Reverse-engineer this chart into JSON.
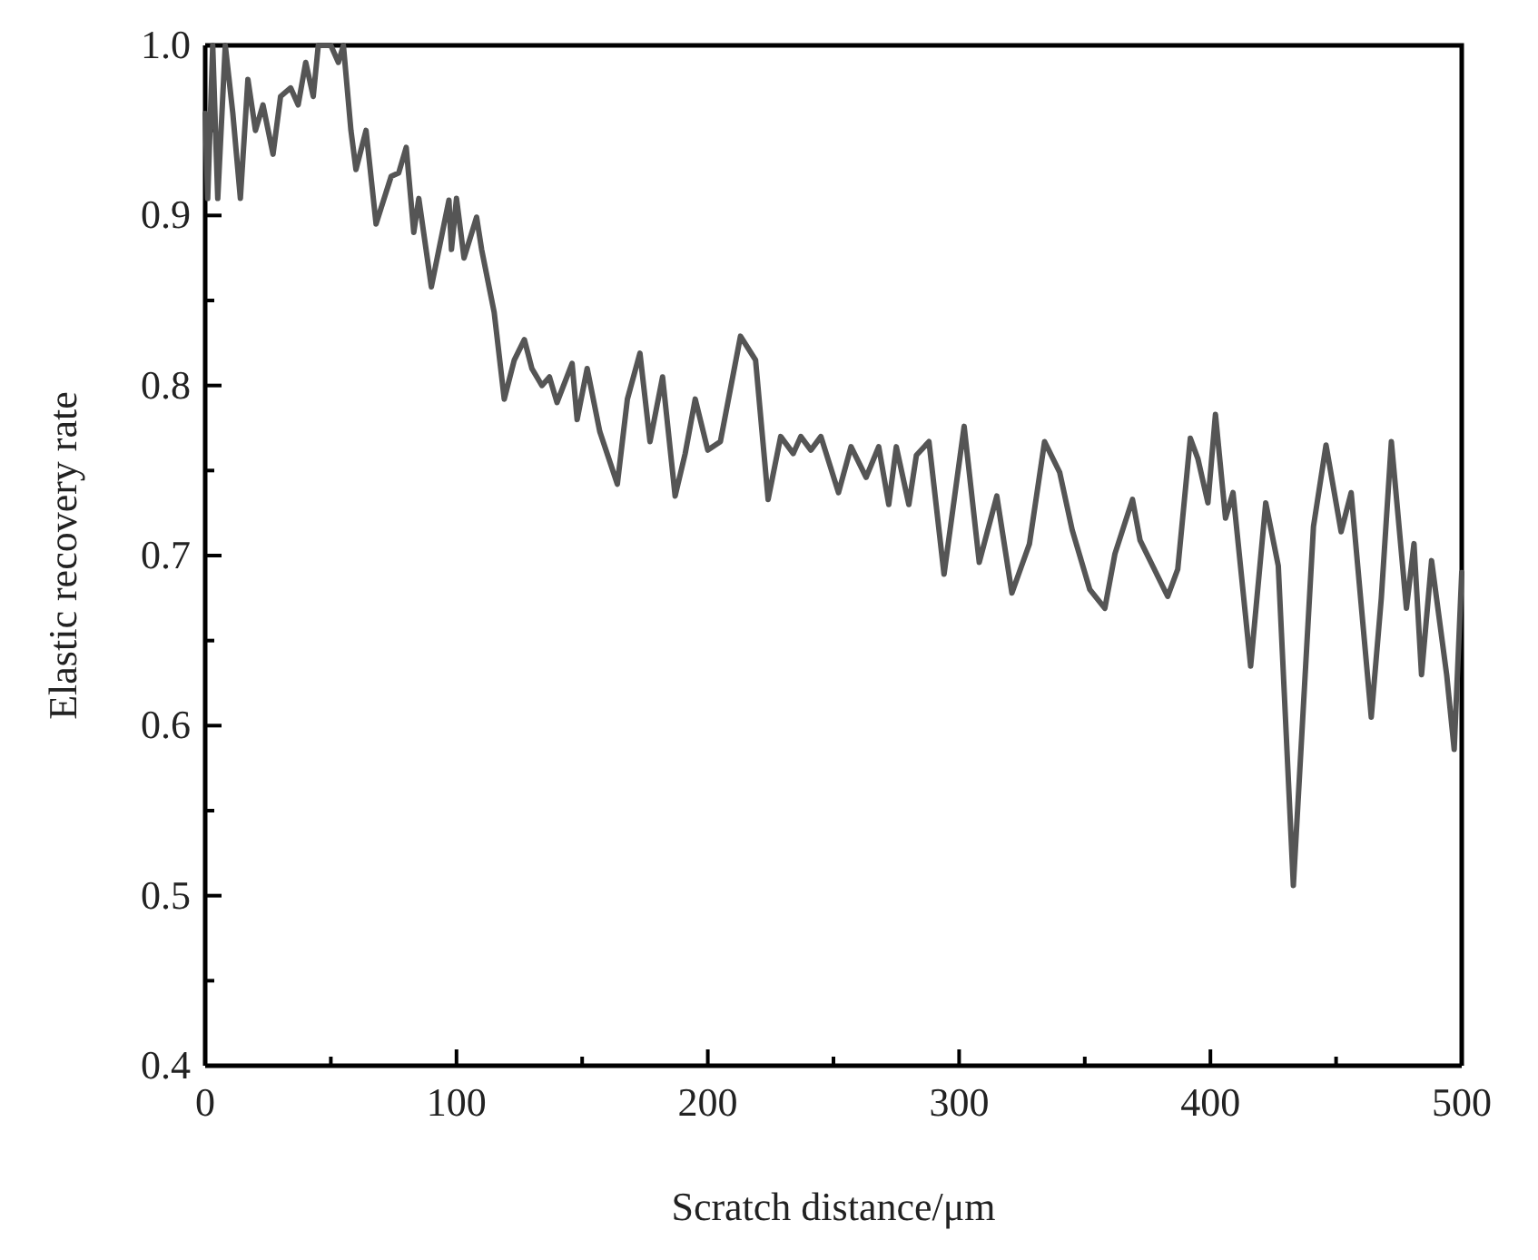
{
  "chart_data": {
    "type": "line",
    "xlabel": "Scratch distance/μm",
    "ylabel": "Elastic recovery rate",
    "xlim": [
      0,
      500
    ],
    "ylim": [
      0.4,
      1.0
    ],
    "xticks": [
      0,
      {
        "value": 50,
        "label": null
      },
      100,
      {
        "value": 150,
        "label": null
      },
      200,
      {
        "value": 250,
        "label": null
      },
      300,
      {
        "value": 350,
        "label": null
      },
      400,
      {
        "value": 450,
        "label": null
      },
      500
    ],
    "yticks": [
      {
        "value": 0.4,
        "label": "0.4"
      },
      {
        "value": 0.45,
        "label": null
      },
      {
        "value": 0.5,
        "label": "0.5"
      },
      {
        "value": 0.55,
        "label": null
      },
      {
        "value": 0.6,
        "label": "0.6"
      },
      {
        "value": 0.65,
        "label": null
      },
      {
        "value": 0.7,
        "label": "0.7"
      },
      {
        "value": 0.75,
        "label": null
      },
      {
        "value": 0.8,
        "label": "0.8"
      },
      {
        "value": 0.85,
        "label": null
      },
      {
        "value": 0.9,
        "label": "0.9"
      },
      {
        "value": 0.95,
        "label": null
      },
      {
        "value": 1.0,
        "label": "1.0"
      }
    ],
    "grid": false,
    "marker": "none",
    "line_style": "solid",
    "series": [
      {
        "color": "#555555",
        "x": [
          0,
          1,
          3,
          5,
          8,
          11,
          14,
          17,
          20,
          23,
          27,
          30,
          34,
          37,
          40,
          43,
          45,
          50,
          53,
          55,
          58,
          60,
          64,
          68,
          74,
          77,
          80,
          83,
          85,
          90,
          93,
          97,
          98,
          100,
          103,
          108,
          110,
          115,
          119,
          123,
          127,
          130,
          134,
          137,
          140,
          146,
          148,
          152,
          157,
          164,
          168,
          173,
          177,
          182,
          187,
          191,
          195,
          200,
          205,
          213,
          219,
          224,
          229,
          234,
          237,
          241,
          245,
          252,
          257,
          263,
          268,
          272,
          275,
          280,
          283,
          288,
          294,
          302,
          308,
          315,
          321,
          328,
          334,
          340,
          345,
          352,
          358,
          362,
          369,
          372,
          377,
          383,
          387,
          392,
          395,
          399,
          402,
          406,
          409,
          416,
          422,
          427,
          433,
          441,
          446,
          452,
          456,
          464,
          468,
          472,
          478,
          481,
          484,
          488,
          494,
          497,
          500
        ],
        "values": [
          0.96,
          0.91,
          1.0,
          0.91,
          1.0,
          0.96,
          0.91,
          0.98,
          0.95,
          0.965,
          0.936,
          0.97,
          0.975,
          0.965,
          0.99,
          0.97,
          1.0,
          1.0,
          0.99,
          1.0,
          0.95,
          0.927,
          0.95,
          0.895,
          0.923,
          0.925,
          0.94,
          0.89,
          0.91,
          0.858,
          0.88,
          0.909,
          0.88,
          0.91,
          0.875,
          0.899,
          0.88,
          0.843,
          0.792,
          0.815,
          0.827,
          0.81,
          0.8,
          0.805,
          0.79,
          0.813,
          0.78,
          0.81,
          0.773,
          0.742,
          0.792,
          0.819,
          0.767,
          0.805,
          0.735,
          0.76,
          0.792,
          0.762,
          0.767,
          0.829,
          0.815,
          0.733,
          0.77,
          0.76,
          0.77,
          0.762,
          0.77,
          0.737,
          0.764,
          0.746,
          0.764,
          0.73,
          0.764,
          0.73,
          0.759,
          0.767,
          0.689,
          0.776,
          0.696,
          0.735,
          0.678,
          0.707,
          0.767,
          0.749,
          0.715,
          0.68,
          0.669,
          0.701,
          0.733,
          0.709,
          0.694,
          0.676,
          0.692,
          0.769,
          0.757,
          0.731,
          0.783,
          0.722,
          0.737,
          0.635,
          0.731,
          0.694,
          0.506,
          0.717,
          0.765,
          0.714,
          0.737,
          0.605,
          0.675,
          0.767,
          0.669,
          0.707,
          0.63,
          0.697,
          0.63,
          0.586,
          0.69
        ]
      }
    ]
  }
}
